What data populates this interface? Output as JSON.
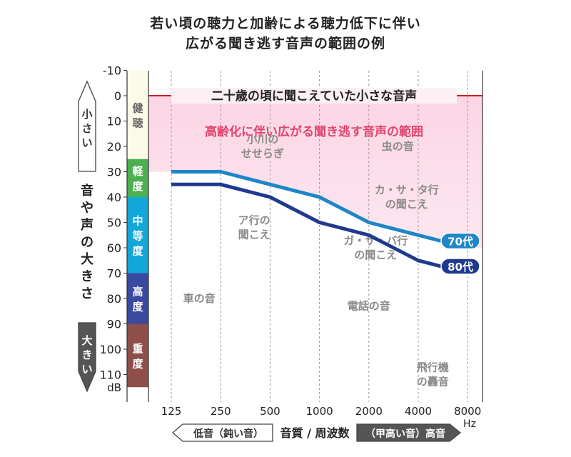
{
  "title_line1": "若い頃の聴力と加齢による聴力低下に伴い",
  "title_line2": "広がる聞き逃す音声の範囲の例",
  "chart_data": {
    "type": "line",
    "y_unit": "dB",
    "x_unit": "Hz",
    "x_ticks": [
      "125",
      "250",
      "500",
      "1000",
      "2000",
      "4000",
      "8000"
    ],
    "y_ticks": [
      "-10",
      "0",
      "10",
      "20",
      "30",
      "40",
      "50",
      "60",
      "70",
      "80",
      "90",
      "100",
      "110"
    ],
    "ylim": [
      -10,
      115
    ],
    "y_inverted": true,
    "x_scale": "log2",
    "grid": "vertical-dashed",
    "reference_line": {
      "y": 0,
      "label": "二十歳の頃に聞こえていた小さな音声",
      "color": "#d01e2a"
    },
    "shaded_region_label": "高齢化に伴い広がる聞き逃す音声の範囲",
    "series": [
      {
        "name": "70代",
        "color": "#1e86c6",
        "points": [
          [
            125,
            30
          ],
          [
            250,
            30
          ],
          [
            500,
            35
          ],
          [
            1000,
            40
          ],
          [
            2000,
            50
          ],
          [
            4000,
            55
          ],
          [
            8000,
            60
          ]
        ]
      },
      {
        "name": "80代",
        "color": "#1e3a8f",
        "points": [
          [
            125,
            35
          ],
          [
            250,
            35
          ],
          [
            500,
            40
          ],
          [
            1000,
            50
          ],
          [
            2000,
            55
          ],
          [
            4000,
            65
          ],
          [
            8000,
            70
          ]
        ]
      }
    ],
    "hearing_levels": [
      {
        "label": "健聴",
        "from": -10,
        "to": 25,
        "color": "#fdfbe8",
        "text_color": "#666666"
      },
      {
        "label": "軽度",
        "from": 25,
        "to": 40,
        "color": "#4caf50",
        "text_color": "#ffffff"
      },
      {
        "label": "中等度",
        "from": 40,
        "to": 70,
        "color": "#12a7d9",
        "text_color": "#ffffff"
      },
      {
        "label": "高度",
        "from": 70,
        "to": 90,
        "color": "#3a4a9f",
        "text_color": "#ffffff"
      },
      {
        "label": "重度",
        "from": 90,
        "to": 115,
        "color": "#8e4f4a",
        "text_color": "#ffffff"
      }
    ],
    "sound_labels": [
      {
        "text": "小川の\nせせらぎ",
        "x": 450,
        "y": 20
      },
      {
        "text": "虫の音",
        "x": 3000,
        "y": 20
      },
      {
        "text": "カ・サ・タ行\nの聞こえ",
        "x": 3400,
        "y": 40
      },
      {
        "text": "ア行の\n聞こえ",
        "x": 400,
        "y": 52
      },
      {
        "text": "ガ・ザ・バ行\nの聞こえ",
        "x": 2200,
        "y": 60
      },
      {
        "text": "車の音",
        "x": 185,
        "y": 80
      },
      {
        "text": "電話の音",
        "x": 2000,
        "y": 83
      },
      {
        "text": "飛行機\nの轟音",
        "x": 4900,
        "y": 110
      }
    ]
  },
  "y_axis_side": {
    "top": "小さい",
    "middle": "音や声の大きさ",
    "bottom": "大きい"
  },
  "x_axis_bottom": {
    "left": "低音（鈍い音）",
    "middle": "音質 / 周波数",
    "right": "（甲高い音）高音"
  }
}
